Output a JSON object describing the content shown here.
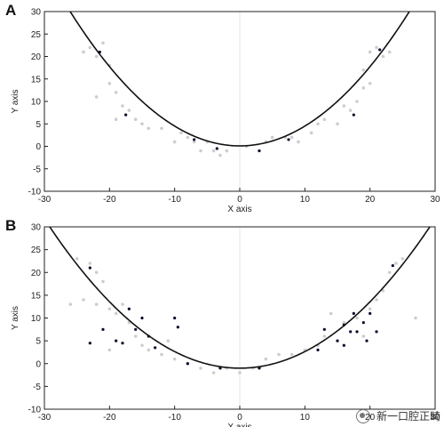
{
  "chart_data": [
    {
      "panel": "A",
      "type": "scatter",
      "xlabel": "X axis",
      "ylabel": "Y axis",
      "xlim": [
        -30,
        30
      ],
      "ylim": [
        -10,
        30
      ],
      "xticks": [
        -30,
        -20,
        -10,
        0,
        10,
        20,
        30
      ],
      "yticks": [
        -10,
        -5,
        0,
        5,
        10,
        15,
        20,
        25,
        30
      ],
      "fit_curve": {
        "form": "y = a*x^2 + c",
        "a": 0.0441,
        "c": 0.1
      },
      "series": [
        {
          "color": "#c8c8c8",
          "points": [
            [
              -23,
              22
            ],
            [
              -22,
              20
            ],
            [
              -20,
              18
            ],
            [
              -24,
              21
            ],
            [
              -21,
              23
            ],
            [
              -19,
              12
            ],
            [
              -22,
              11
            ],
            [
              -20,
              14
            ],
            [
              -18,
              9
            ],
            [
              -17,
              8
            ],
            [
              -19,
              6
            ],
            [
              -16,
              6
            ],
            [
              -15,
              5
            ],
            [
              -14,
              4
            ],
            [
              -12,
              4
            ],
            [
              -10,
              1
            ],
            [
              -9,
              3
            ],
            [
              -8,
              2
            ],
            [
              -7,
              1
            ],
            [
              -6,
              -1
            ],
            [
              -5,
              1
            ],
            [
              -4,
              -1
            ],
            [
              -3,
              -2
            ],
            [
              -2,
              -1
            ],
            [
              1,
              0
            ],
            [
              3,
              -1
            ],
            [
              4,
              1
            ],
            [
              5,
              2
            ],
            [
              7,
              2
            ],
            [
              8,
              2
            ],
            [
              9,
              1
            ],
            [
              11,
              3
            ],
            [
              12,
              5
            ],
            [
              13,
              6
            ],
            [
              15,
              5
            ],
            [
              16,
              9
            ],
            [
              17,
              8
            ],
            [
              18,
              10
            ],
            [
              19,
              13
            ],
            [
              20,
              14
            ],
            [
              19,
              17
            ],
            [
              21,
              22
            ],
            [
              22,
              20
            ],
            [
              23,
              21
            ],
            [
              20,
              21
            ]
          ]
        },
        {
          "color": "#0a0a28",
          "points": [
            [
              -21.5,
              21
            ],
            [
              -17.5,
              7
            ],
            [
              -7,
              1.5
            ],
            [
              -3.5,
              -0.5
            ],
            [
              3,
              -1
            ],
            [
              7.5,
              1.5
            ],
            [
              17.5,
              7
            ],
            [
              21.5,
              21.5
            ]
          ]
        }
      ]
    },
    {
      "panel": "B",
      "type": "scatter",
      "xlabel": "X axis",
      "ylabel": "Y axis",
      "xlim": [
        -30,
        30
      ],
      "ylim": [
        -10,
        30
      ],
      "xticks": [
        -30,
        -20,
        -10,
        0,
        10,
        20,
        30
      ],
      "yticks": [
        -10,
        -5,
        0,
        5,
        10,
        15,
        20,
        25,
        30
      ],
      "fit_curve": {
        "form": "y = a*x^2 + c",
        "a": 0.0364,
        "c": -1
      },
      "series": [
        {
          "color": "#c8c8c8",
          "points": [
            [
              -25,
              23
            ],
            [
              -23,
              22
            ],
            [
              -22,
              20
            ],
            [
              -21,
              18
            ],
            [
              -24,
              14
            ],
            [
              -22,
              13
            ],
            [
              -20,
              12
            ],
            [
              -19,
              11
            ],
            [
              -18,
              13
            ],
            [
              -17,
              9
            ],
            [
              -16,
              6
            ],
            [
              -15,
              4
            ],
            [
              -14,
              3
            ],
            [
              -12,
              2
            ],
            [
              -10,
              1
            ],
            [
              -8,
              0
            ],
            [
              -6,
              -1
            ],
            [
              -4,
              -2
            ],
            [
              -2,
              -1
            ],
            [
              0,
              -2
            ],
            [
              2,
              -1
            ],
            [
              4,
              1
            ],
            [
              6,
              2
            ],
            [
              8,
              2
            ],
            [
              10,
              3
            ],
            [
              12,
              4
            ],
            [
              13,
              6
            ],
            [
              15,
              5
            ],
            [
              16,
              9
            ],
            [
              18,
              10
            ],
            [
              20,
              12
            ],
            [
              21,
              14
            ],
            [
              22,
              16
            ],
            [
              23,
              20
            ],
            [
              24,
              22
            ],
            [
              25,
              23
            ],
            [
              -26,
              13
            ],
            [
              27,
              10
            ],
            [
              -11,
              5
            ],
            [
              14,
              11
            ],
            [
              19,
              6
            ],
            [
              -20,
              3
            ]
          ]
        },
        {
          "color": "#0a0a28",
          "points": [
            [
              -23,
              21
            ],
            [
              -21,
              7.5
            ],
            [
              -19,
              5
            ],
            [
              -16,
              7.5
            ],
            [
              -23,
              4.5
            ],
            [
              -18,
              4.5
            ],
            [
              -17,
              12
            ],
            [
              -15,
              10
            ],
            [
              -14,
              6
            ],
            [
              -13,
              3.5
            ],
            [
              -10,
              10
            ],
            [
              -9.5,
              8
            ],
            [
              -8,
              0
            ],
            [
              -3,
              -1
            ],
            [
              3,
              -1
            ],
            [
              12,
              3
            ],
            [
              13,
              7.5
            ],
            [
              15,
              5
            ],
            [
              16,
              8.5
            ],
            [
              17,
              7
            ],
            [
              17.5,
              11
            ],
            [
              18,
              7
            ],
            [
              19,
              9
            ],
            [
              19.5,
              5
            ],
            [
              20,
              11
            ],
            [
              21,
              7
            ],
            [
              23.5,
              21.5
            ],
            [
              16,
              4
            ]
          ]
        }
      ]
    }
  ],
  "watermark": {
    "text": "新一口腔正畸"
  },
  "palette": {
    "axis": "#222222",
    "curve": "#111111",
    "grid_lines": "#e6e6e6"
  }
}
